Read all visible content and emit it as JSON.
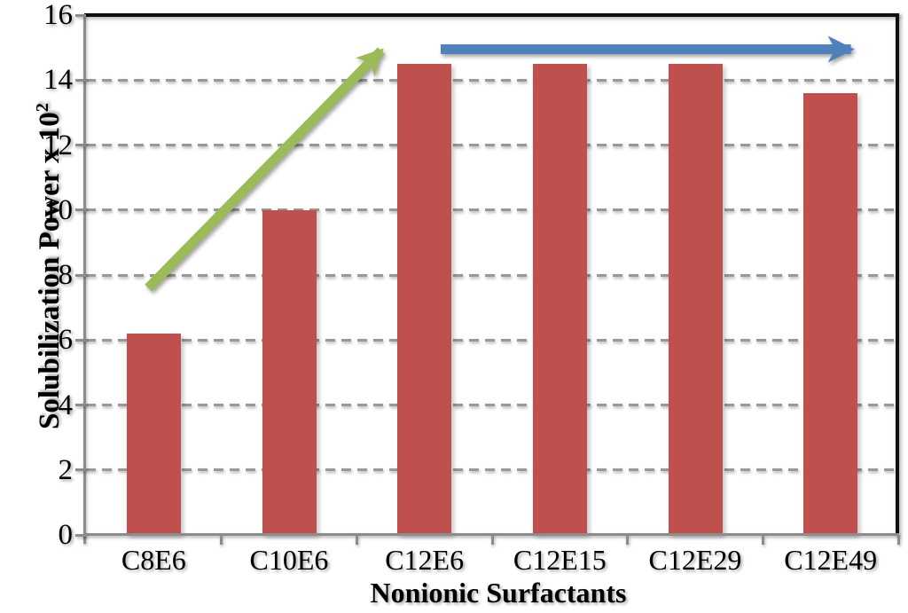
{
  "chart_data": {
    "type": "bar",
    "title": "",
    "categories": [
      "C8E6",
      "C10E6",
      "C12E6",
      "C12E15",
      "C12E29",
      "C12E49"
    ],
    "values": [
      6.2,
      10,
      14.5,
      14.5,
      14.5,
      13.6
    ],
    "xlabel": "Nonionic Surfactants",
    "ylabel": "Solubilization Power x 10²",
    "ylabel_base": "Solubilization Power x 10",
    "ylabel_sup": "2",
    "ylim": [
      0,
      16
    ],
    "yticks": [
      0,
      2,
      4,
      6,
      8,
      10,
      12,
      14,
      16
    ],
    "grid": "horizontal-dashed",
    "legend": "none",
    "bar_color": "#C0504D",
    "annotations": [
      {
        "id": "rising-trend-arrow",
        "type": "arrow",
        "color": "#9BBB59",
        "description": "upward arrow from above C8E6 toward C12E6 showing increasing solubilization power",
        "from": {
          "cat_x": -0.04,
          "value": 7.6
        },
        "to": {
          "cat_x": 1.68,
          "value": 14.9
        }
      },
      {
        "id": "plateau-arrow",
        "type": "arrow",
        "color": "#4F81BD",
        "description": "horizontal arrow from C12E6 to C12E49 showing constant solubilization power",
        "from": {
          "cat_x": 2.12,
          "value": 14.95
        },
        "to": {
          "cat_x": 5.15,
          "value": 14.95
        }
      }
    ]
  }
}
